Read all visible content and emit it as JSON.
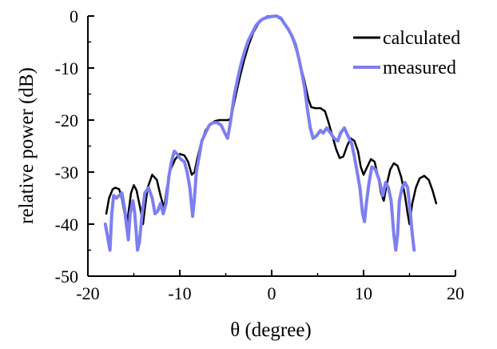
{
  "chart_data": {
    "type": "line",
    "title": "",
    "xlabel": "θ (degree)",
    "ylabel": "relative power (dB)",
    "xlim": [
      -20,
      20
    ],
    "ylim": [
      -50,
      0
    ],
    "xticks": [
      -20,
      -10,
      0,
      10,
      20
    ],
    "yticks": [
      0,
      -10,
      -20,
      -30,
      -40,
      -50
    ],
    "grid": false,
    "legend_position": "top-right",
    "series": [
      {
        "name": "calculated",
        "color": "#000000",
        "points": [
          [
            -18.0,
            -38.0
          ],
          [
            -17.7,
            -35.0
          ],
          [
            -17.3,
            -33.3
          ],
          [
            -17.0,
            -33.0
          ],
          [
            -16.6,
            -33.3
          ],
          [
            -16.3,
            -35.0
          ],
          [
            -16.0,
            -38.0
          ],
          [
            -15.8,
            -41.0
          ],
          [
            -15.6,
            -38.0
          ],
          [
            -15.3,
            -34.0
          ],
          [
            -15.0,
            -32.5
          ],
          [
            -14.7,
            -33.5
          ],
          [
            -14.3,
            -37.0
          ],
          [
            -14.0,
            -40.0
          ],
          [
            -13.8,
            -37.0
          ],
          [
            -13.5,
            -33.0
          ],
          [
            -13.0,
            -30.5
          ],
          [
            -12.5,
            -31.5
          ],
          [
            -12.1,
            -34.5
          ],
          [
            -11.7,
            -37.0
          ],
          [
            -11.4,
            -33.0
          ],
          [
            -11.0,
            -29.5
          ],
          [
            -10.5,
            -27.5
          ],
          [
            -10.0,
            -26.5
          ],
          [
            -9.5,
            -26.8
          ],
          [
            -9.1,
            -28.0
          ],
          [
            -8.7,
            -30.5
          ],
          [
            -8.4,
            -30.0
          ],
          [
            -8.1,
            -27.5
          ],
          [
            -7.7,
            -24.5
          ],
          [
            -7.2,
            -22.0
          ],
          [
            -6.7,
            -20.8
          ],
          [
            -6.2,
            -20.2
          ],
          [
            -5.7,
            -20.0
          ],
          [
            -5.2,
            -20.0
          ],
          [
            -4.7,
            -20.0
          ],
          [
            -4.4,
            -19.5
          ],
          [
            -4.0,
            -16.0
          ],
          [
            -3.5,
            -12.0
          ],
          [
            -3.0,
            -8.5
          ],
          [
            -2.5,
            -5.5
          ],
          [
            -2.0,
            -3.2
          ],
          [
            -1.5,
            -1.6
          ],
          [
            -1.0,
            -0.6
          ],
          [
            -0.5,
            -0.1
          ],
          [
            0.0,
            0.0
          ],
          [
            0.5,
            -0.1
          ],
          [
            1.0,
            -0.6
          ],
          [
            1.5,
            -1.6
          ],
          [
            2.0,
            -3.2
          ],
          [
            2.5,
            -5.5
          ],
          [
            3.0,
            -8.5
          ],
          [
            3.5,
            -12.0
          ],
          [
            4.0,
            -16.0
          ],
          [
            4.3,
            -17.5
          ],
          [
            4.7,
            -17.7
          ],
          [
            5.3,
            -17.7
          ],
          [
            5.8,
            -18.3
          ],
          [
            6.2,
            -20.5
          ],
          [
            6.6,
            -23.0
          ],
          [
            7.0,
            -25.5
          ],
          [
            7.4,
            -27.3
          ],
          [
            7.8,
            -27.0
          ],
          [
            8.2,
            -25.0
          ],
          [
            8.6,
            -23.5
          ],
          [
            9.0,
            -24.0
          ],
          [
            9.4,
            -26.0
          ],
          [
            9.7,
            -29.0
          ],
          [
            10.0,
            -30.5
          ],
          [
            10.4,
            -29.0
          ],
          [
            10.8,
            -27.5
          ],
          [
            11.2,
            -28.0
          ],
          [
            11.6,
            -31.0
          ],
          [
            11.9,
            -34.0
          ],
          [
            12.2,
            -35.5
          ],
          [
            12.5,
            -32.5
          ],
          [
            12.9,
            -29.5
          ],
          [
            13.3,
            -28.3
          ],
          [
            13.7,
            -28.8
          ],
          [
            14.1,
            -31.0
          ],
          [
            14.5,
            -34.5
          ],
          [
            14.8,
            -38.0
          ],
          [
            15.0,
            -40.0
          ],
          [
            15.3,
            -36.0
          ],
          [
            15.7,
            -33.0
          ],
          [
            16.1,
            -31.2
          ],
          [
            16.6,
            -30.7
          ],
          [
            17.1,
            -31.5
          ],
          [
            17.5,
            -33.5
          ],
          [
            17.9,
            -36.0
          ]
        ]
      },
      {
        "name": "measured",
        "color": "#7d7ff0",
        "points": [
          [
            -18.1,
            -40.0
          ],
          [
            -17.9,
            -42.0
          ],
          [
            -17.6,
            -45.0
          ],
          [
            -17.4,
            -38.0
          ],
          [
            -17.2,
            -34.5
          ],
          [
            -16.9,
            -35.0
          ],
          [
            -16.6,
            -34.5
          ],
          [
            -16.3,
            -34.0
          ],
          [
            -16.0,
            -37.0
          ],
          [
            -15.6,
            -43.0
          ],
          [
            -15.4,
            -38.0
          ],
          [
            -15.1,
            -35.5
          ],
          [
            -14.9,
            -38.0
          ],
          [
            -14.6,
            -45.0
          ],
          [
            -14.4,
            -43.5
          ],
          [
            -14.1,
            -38.0
          ],
          [
            -13.8,
            -34.0
          ],
          [
            -13.4,
            -33.0
          ],
          [
            -13.0,
            -35.0
          ],
          [
            -12.7,
            -38.0
          ],
          [
            -12.4,
            -37.5
          ],
          [
            -12.1,
            -36.0
          ],
          [
            -11.8,
            -38.0
          ],
          [
            -11.5,
            -36.0
          ],
          [
            -11.2,
            -31.0
          ],
          [
            -10.9,
            -28.0
          ],
          [
            -10.6,
            -26.0
          ],
          [
            -10.3,
            -26.5
          ],
          [
            -9.9,
            -27.5
          ],
          [
            -9.5,
            -28.0
          ],
          [
            -9.2,
            -30.0
          ],
          [
            -8.9,
            -33.0
          ],
          [
            -8.6,
            -38.5
          ],
          [
            -8.4,
            -35.0
          ],
          [
            -8.2,
            -30.0
          ],
          [
            -7.9,
            -27.0
          ],
          [
            -7.6,
            -24.0
          ],
          [
            -7.2,
            -22.5
          ],
          [
            -6.8,
            -21.0
          ],
          [
            -6.4,
            -20.5
          ],
          [
            -5.9,
            -20.5
          ],
          [
            -5.5,
            -21.0
          ],
          [
            -5.1,
            -22.5
          ],
          [
            -4.8,
            -23.5
          ],
          [
            -4.5,
            -20.5
          ],
          [
            -4.1,
            -15.5
          ],
          [
            -3.7,
            -12.0
          ],
          [
            -3.3,
            -9.0
          ],
          [
            -2.9,
            -6.5
          ],
          [
            -2.5,
            -4.5
          ],
          [
            -2.1,
            -3.2
          ],
          [
            -1.7,
            -1.8
          ],
          [
            -1.3,
            -1.0
          ],
          [
            -0.9,
            -0.5
          ],
          [
            -0.5,
            -0.3
          ],
          [
            0.0,
            -0.1
          ],
          [
            0.5,
            0.0
          ],
          [
            1.0,
            -0.4
          ],
          [
            1.4,
            -1.5
          ],
          [
            1.8,
            -2.5
          ],
          [
            2.2,
            -3.8
          ],
          [
            2.6,
            -5.5
          ],
          [
            3.0,
            -8.5
          ],
          [
            3.3,
            -11.0
          ],
          [
            3.6,
            -14.0
          ],
          [
            3.9,
            -18.0
          ],
          [
            4.2,
            -21.5
          ],
          [
            4.5,
            -23.5
          ],
          [
            4.9,
            -23.0
          ],
          [
            5.3,
            -22.0
          ],
          [
            5.6,
            -22.5
          ],
          [
            6.0,
            -21.5
          ],
          [
            6.4,
            -22.5
          ],
          [
            6.8,
            -23.5
          ],
          [
            7.2,
            -24.0
          ],
          [
            7.5,
            -22.5
          ],
          [
            7.9,
            -21.5
          ],
          [
            8.3,
            -23.0
          ],
          [
            8.7,
            -24.5
          ],
          [
            9.0,
            -27.0
          ],
          [
            9.3,
            -30.0
          ],
          [
            9.6,
            -33.0
          ],
          [
            9.9,
            -38.0
          ],
          [
            10.1,
            -39.5
          ],
          [
            10.3,
            -36.0
          ],
          [
            10.6,
            -32.0
          ],
          [
            10.9,
            -29.0
          ],
          [
            11.3,
            -29.5
          ],
          [
            11.7,
            -31.5
          ],
          [
            12.1,
            -34.5
          ],
          [
            12.4,
            -32.0
          ],
          [
            12.7,
            -33.0
          ],
          [
            13.0,
            -35.5
          ],
          [
            13.3,
            -42.0
          ],
          [
            13.5,
            -45.0
          ],
          [
            13.7,
            -42.0
          ],
          [
            13.9,
            -35.5
          ],
          [
            14.2,
            -33.0
          ],
          [
            14.5,
            -32.0
          ],
          [
            14.8,
            -33.0
          ],
          [
            15.1,
            -38.0
          ],
          [
            15.3,
            -42.0
          ],
          [
            15.5,
            -45.0
          ]
        ]
      }
    ]
  }
}
